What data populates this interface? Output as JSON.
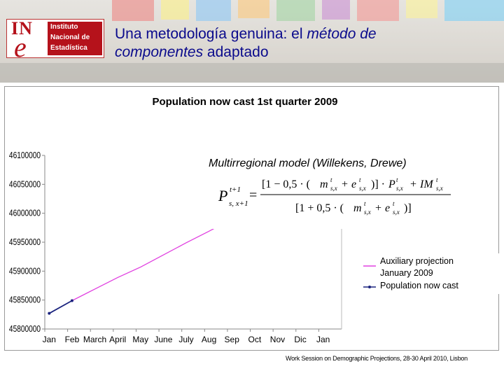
{
  "header": {
    "logo_acronym": "INE",
    "logo_lines": [
      "Instituto",
      "Nacional de",
      "Estadística"
    ],
    "title_part1": "Una metodología genuina: el ",
    "title_em1": "método de",
    "title_em2": "componentes",
    "title_part2": " adaptado"
  },
  "formula": {
    "label": "Multirregional model (Willekens, Drewe)",
    "expression": "P(s,x+1)^(t+1) = ([1 − 0,5·(m(s,x)^t + e(s,x)^t)] · P(s,x)^t + IM(s,x)^t) / [1 + 0,5·(m(s,x)^t + e(s,x)^t)]"
  },
  "footer": "Work Session on Demographic Projections, 28-30 April 2010, Lisbon",
  "colors": {
    "auxiliary": "#e040e0",
    "nowcast": "#1a237e",
    "title": "#0a0a8c"
  },
  "chart_data": {
    "type": "line",
    "title": "Population now cast 1st quarter 2009",
    "categories": [
      "Jan",
      "Feb",
      "March",
      "April",
      "May",
      "June",
      "July",
      "Aug",
      "Sep",
      "Oct",
      "Nov",
      "Dic",
      "Jan"
    ],
    "ylim": [
      45800000,
      46100000
    ],
    "yticks": [
      "45800000",
      "45850000",
      "45900000",
      "45950000",
      "46000000",
      "46050000",
      "46100000"
    ],
    "series": [
      {
        "name": "Auxiliary projection January 2009",
        "x": [
          1,
          2,
          3,
          4,
          5,
          6,
          7,
          8,
          9
        ],
        "values": [
          45849000,
          45869000,
          45889000,
          45907000,
          45928000,
          45949000,
          45969000,
          45990000,
          46010000
        ]
      },
      {
        "name": "Population now cast",
        "x": [
          0,
          1
        ],
        "values": [
          45827000,
          45849000
        ]
      }
    ],
    "legend": "right",
    "grid": false
  }
}
